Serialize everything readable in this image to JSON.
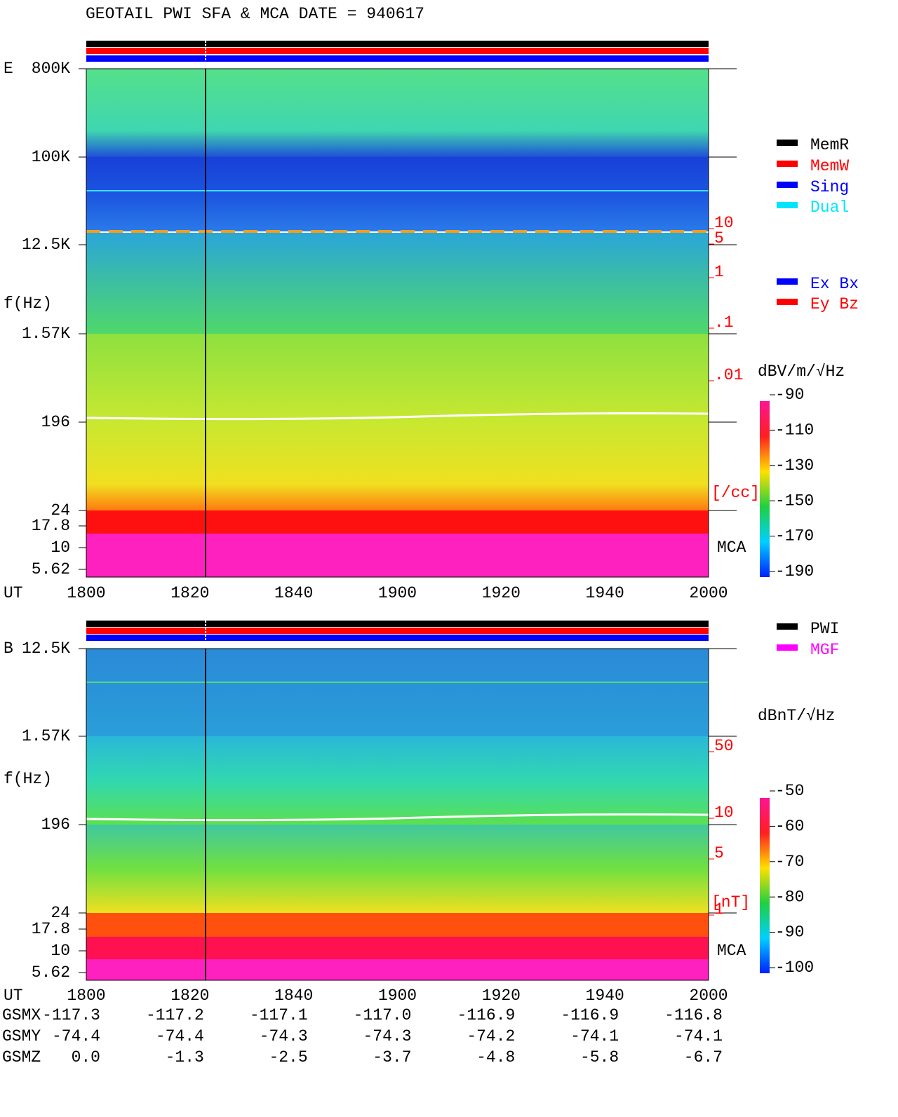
{
  "title": "GEOTAIL  PWI SFA & MCA   DATE = 940617",
  "panels": [
    {
      "label": "E",
      "axis_label": "f(Hz)",
      "yticks": [
        "800K",
        "100K",
        "12.5K",
        "1.57K",
        "196",
        "24",
        "17.8",
        "10",
        "5.62"
      ],
      "xaxis_label": "UT",
      "xticks": [
        "1800",
        "1820",
        "1840",
        "1900",
        "1920",
        "1940",
        "2000"
      ],
      "density_ticks": [
        "10",
        "5",
        "1",
        ".1",
        ".01"
      ],
      "density_unit": "[/cc]",
      "mca": "MCA",
      "legend": [
        {
          "name": "MemR",
          "color": "#000000"
        },
        {
          "name": "MemW",
          "color": "#ff0000"
        },
        {
          "name": "Sing",
          "color": "#0000ff"
        },
        {
          "name": "Dual",
          "color": "#00e5ff"
        },
        {
          "name": "Ex Bx",
          "color": "#0000ff"
        },
        {
          "name": "Ey Bz",
          "color": "#ff0000"
        }
      ],
      "colorbar": {
        "unit": "dBV/m/√Hz",
        "ticks": [
          -90,
          -110,
          -130,
          -150,
          -170,
          -190
        ]
      }
    },
    {
      "label": "B",
      "axis_label": "f(Hz)",
      "yticks": [
        "12.5K",
        "1.57K",
        "196",
        "24",
        "17.8",
        "10",
        "5.62"
      ],
      "xaxis_label": "UT",
      "xticks": [
        "1800",
        "1820",
        "1840",
        "1900",
        "1920",
        "1940",
        "2000"
      ],
      "density_ticks": [
        "50",
        "10",
        "5",
        "1"
      ],
      "density_unit": "[nT]",
      "mca": "MCA",
      "legend": [
        {
          "name": "PWI",
          "color": "#000000"
        },
        {
          "name": "MGF",
          "color": "#ff00ff"
        }
      ],
      "colorbar": {
        "unit": "dBnT/√Hz",
        "ticks": [
          -50,
          -60,
          -70,
          -80,
          -90,
          -100
        ]
      }
    }
  ],
  "orbit": {
    "rows": [
      {
        "label": "GSMX",
        "values": [
          "-117.3",
          "-117.2",
          "-117.1",
          "-117.0",
          "-116.9",
          "-116.9",
          "-116.8"
        ]
      },
      {
        "label": "GSMY",
        "values": [
          "-74.4",
          "-74.4",
          "-74.3",
          "-74.3",
          "-74.2",
          "-74.1",
          "-74.1"
        ]
      },
      {
        "label": "GSMZ",
        "values": [
          "0.0",
          "-1.3",
          "-2.5",
          "-3.7",
          "-4.8",
          "-5.8",
          "-6.7"
        ]
      }
    ]
  }
}
